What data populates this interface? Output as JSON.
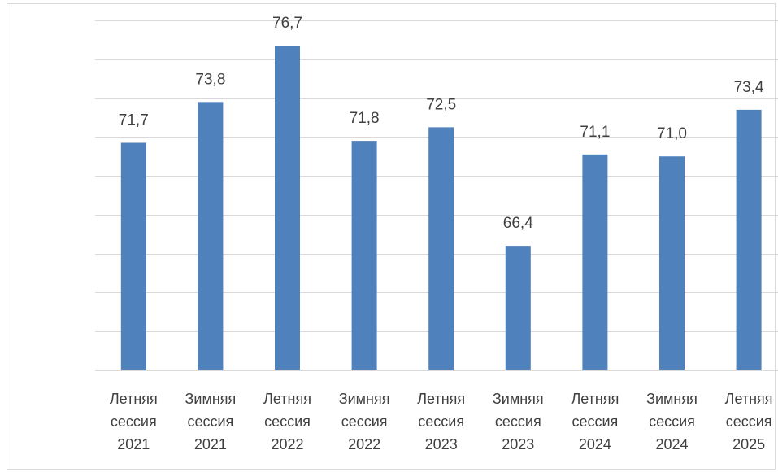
{
  "chart_data": {
    "type": "bar",
    "categories": [
      [
        "Летняя",
        "сессия",
        "2021"
      ],
      [
        "Зимняя",
        "сессия",
        "2021"
      ],
      [
        "Летняя",
        "сессия",
        "2022"
      ],
      [
        "Зимняя",
        "сессия",
        "2022"
      ],
      [
        "Летняя",
        "сессия",
        "2023"
      ],
      [
        "Зимняя",
        "сессия",
        "2023"
      ],
      [
        "Летняя",
        "сессия",
        "2024"
      ],
      [
        "Зимняя",
        "сессия",
        "2024"
      ],
      [
        "Летняя",
        "сессия",
        "2025"
      ]
    ],
    "values": [
      71.7,
      73.8,
      76.7,
      71.8,
      72.5,
      66.4,
      71.1,
      71.0,
      73.4
    ],
    "value_labels": [
      "71,7",
      "73,8",
      "76,7",
      "71,8",
      "72,5",
      "66,4",
      "71,1",
      "71,0",
      "73,4"
    ],
    "title": "",
    "xlabel": "",
    "ylabel": "",
    "ylim": [
      60,
      78
    ],
    "y_tick_step": 2,
    "grid": true,
    "legend": "none",
    "y_axis_labels_shown": false,
    "bar_color": "#4f81bd",
    "grid_color": "#d9d9d9",
    "text_color": "#404040"
  }
}
